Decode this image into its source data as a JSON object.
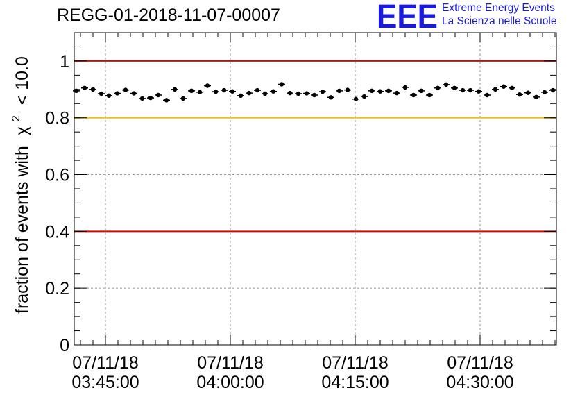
{
  "header": {
    "title": "REGG-01-2018-11-07-00007",
    "logo_letters": "EEE",
    "logo_line1": "Extreme Energy Events",
    "logo_line2": "La Scienza nelle Scuole"
  },
  "colors": {
    "logo_blue": "#1a1adc",
    "red_line": "#e00000",
    "yellow_line": "#f5c000"
  },
  "chart_data": {
    "type": "scatter",
    "title": "REGG-01-2018-11-07-00007",
    "ylabel": "fraction of events with χ² < 10.0",
    "ylabel_main": "fraction of events with",
    "ylabel_chi": "χ",
    "ylabel_sup": "2",
    "ylabel_tail": "< 10.0",
    "xlabel": "",
    "xlim_minutes": [
      0,
      69.5
    ],
    "ylim": [
      0,
      1.1
    ],
    "y_ticks": [
      0,
      0.2,
      0.4,
      0.6,
      0.8,
      1
    ],
    "y_tick_labels": [
      "0",
      "0.2",
      "0.4",
      "0.6",
      "0.8",
      "1"
    ],
    "x_ticks_minutes": [
      4.5,
      22.5,
      40.5,
      58.5
    ],
    "x_tick_labels": [
      [
        "07/11/18",
        "03:45:00"
      ],
      [
        "07/11/18",
        "04:00:00"
      ],
      [
        "07/11/18",
        "04:15:00"
      ],
      [
        "07/11/18",
        "04:30:00"
      ]
    ],
    "reference_lines": [
      {
        "y": 1.0,
        "color": "red"
      },
      {
        "y": 0.8,
        "color": "yellow"
      },
      {
        "y": 0.4,
        "color": "red"
      }
    ],
    "grid": true,
    "points": {
      "x_minutes": [
        0.3,
        1.5,
        2.7,
        3.9,
        5.0,
        6.2,
        7.4,
        8.6,
        9.8,
        11.0,
        12.1,
        13.3,
        14.5,
        15.7,
        16.9,
        18.1,
        19.2,
        20.4,
        21.6,
        22.8,
        24.0,
        25.2,
        26.4,
        27.5,
        28.7,
        29.9,
        31.1,
        32.3,
        33.5,
        34.6,
        35.8,
        37.0,
        38.2,
        39.4,
        40.6,
        41.8,
        42.9,
        44.1,
        45.3,
        46.5,
        47.7,
        48.9,
        50.0,
        51.2,
        52.4,
        53.6,
        54.8,
        56.0,
        57.1,
        58.3,
        59.5,
        60.7,
        61.9,
        63.1,
        64.2,
        65.4,
        66.6,
        67.8,
        69.0
      ],
      "y": [
        0.895,
        0.905,
        0.9,
        0.885,
        0.878,
        0.886,
        0.898,
        0.886,
        0.868,
        0.87,
        0.88,
        0.862,
        0.9,
        0.868,
        0.895,
        0.89,
        0.913,
        0.892,
        0.897,
        0.893,
        0.878,
        0.887,
        0.897,
        0.885,
        0.893,
        0.918,
        0.887,
        0.885,
        0.886,
        0.88,
        0.892,
        0.872,
        0.895,
        0.898,
        0.866,
        0.875,
        0.895,
        0.893,
        0.895,
        0.887,
        0.907,
        0.88,
        0.895,
        0.88,
        0.905,
        0.917,
        0.905,
        0.897,
        0.897,
        0.893,
        0.88,
        0.9,
        0.91,
        0.905,
        0.882,
        0.888,
        0.873,
        0.89,
        0.897
      ],
      "x_err_minutes": 0.5,
      "y_err": 0.007
    }
  }
}
